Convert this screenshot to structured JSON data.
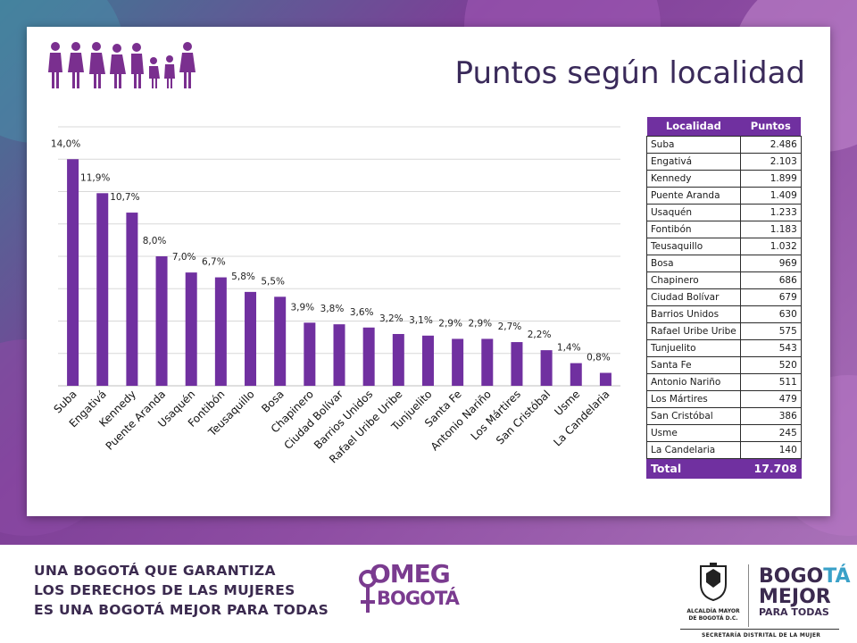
{
  "title": "Puntos según localidad",
  "colors": {
    "bar": "#7030a0",
    "header": "#7030a0",
    "footer_text": "#3b2a4f"
  },
  "icon": "women-family-icon",
  "chart_data": {
    "type": "bar",
    "title": "",
    "xlabel": "",
    "ylabel": "",
    "ylim": [
      0,
      16
    ],
    "grid": true,
    "categories": [
      "Suba",
      "Engativá",
      "Kennedy",
      "Puente Aranda",
      "Usaquén",
      "Fontibón",
      "Teusaquillo",
      "Bosa",
      "Chapinero",
      "Ciudad Bolívar",
      "Barrios Unidos",
      "Rafael Uribe Uribe",
      "Tunjuelito",
      "Santa Fe",
      "Antonio Nariño",
      "Los Mártires",
      "San Cristóbal",
      "Usme",
      "La Candelaria"
    ],
    "values": [
      14.0,
      11.9,
      10.7,
      8.0,
      7.0,
      6.7,
      5.8,
      5.5,
      3.9,
      3.8,
      3.6,
      3.2,
      3.1,
      2.9,
      2.9,
      2.7,
      2.2,
      1.4,
      0.8
    ],
    "data_labels": [
      "14,0%",
      "11,9%",
      "10,7%",
      "8,0%",
      "7,0%",
      "6,7%",
      "5,8%",
      "5,5%",
      "3,9%",
      "3,8%",
      "3,6%",
      "3,2%",
      "3,1%",
      "2,9%",
      "2,9%",
      "2,7%",
      "2,2%",
      "1,4%",
      "0,8%"
    ]
  },
  "table": {
    "headers": [
      "Localidad",
      "Puntos"
    ],
    "rows": [
      [
        "Suba",
        "2.486"
      ],
      [
        "Engativá",
        "2.103"
      ],
      [
        "Kennedy",
        "1.899"
      ],
      [
        "Puente Aranda",
        "1.409"
      ],
      [
        "Usaquén",
        "1.233"
      ],
      [
        "Fontibón",
        "1.183"
      ],
      [
        "Teusaquillo",
        "1.032"
      ],
      [
        "Bosa",
        "969"
      ],
      [
        "Chapinero",
        "686"
      ],
      [
        "Ciudad Bolívar",
        "679"
      ],
      [
        "Barrios Unidos",
        "630"
      ],
      [
        "Rafael Uribe Uribe",
        "575"
      ],
      [
        "Tunjuelito",
        "543"
      ],
      [
        "Santa Fe",
        "520"
      ],
      [
        "Antonio Nariño",
        "511"
      ],
      [
        "Los Mártires",
        "479"
      ],
      [
        "San Cristóbal",
        "386"
      ],
      [
        "Usme",
        "245"
      ],
      [
        "La Candelaria",
        "140"
      ]
    ],
    "total_label": "Total",
    "total_value": "17.708"
  },
  "footer": {
    "slogan_line1": "UNA BOGOTÁ QUE GARANTIZA",
    "slogan_line2": "LOS DERECHOS DE LAS MUJERES",
    "slogan_line3": "ES UNA BOGOTÁ MEJOR PARA TODAS",
    "omeg_top": "OMEG",
    "omeg_bottom": "BOGOTÁ",
    "alcaldia_line1": "ALCALDÍA MAYOR",
    "alcaldia_line2": "DE BOGOTÁ D.C.",
    "bogota_part1": "BOGO",
    "bogota_part2": "TÁ",
    "mejor": "MEJOR",
    "para_todas": "PARA TODAS",
    "secretaria": "SECRETARÍA DISTRITAL DE LA MUJER"
  }
}
